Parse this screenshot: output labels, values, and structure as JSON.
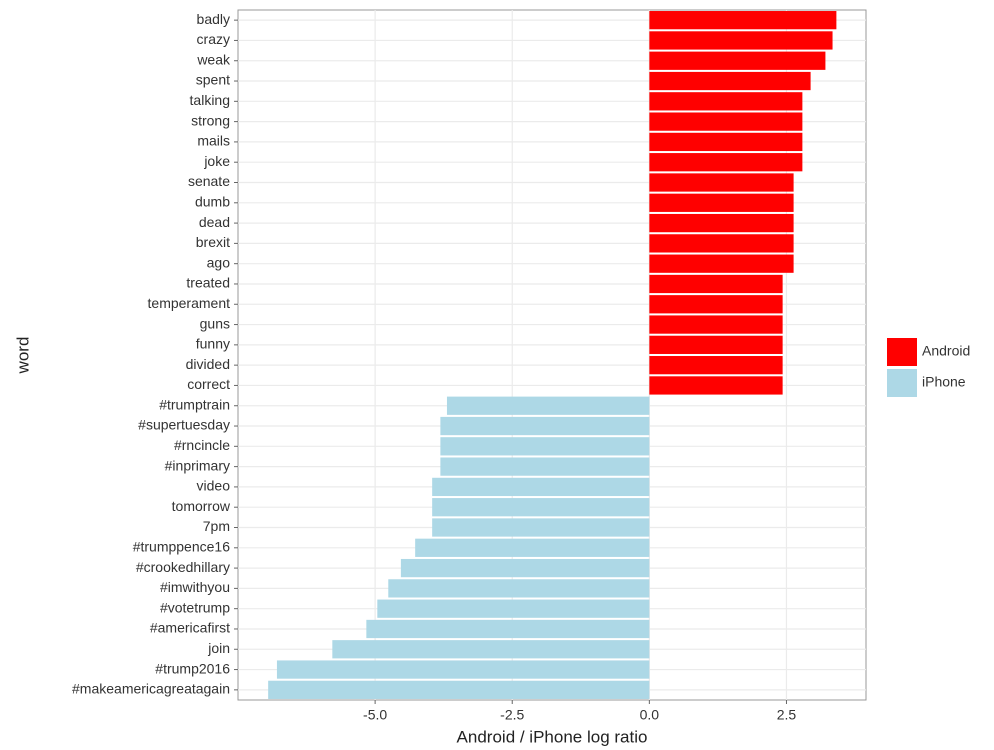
{
  "chart_data": {
    "type": "hbar",
    "x_label": "Android / iPhone log ratio",
    "y_label": "word",
    "xlim": [
      -7.5,
      3.95
    ],
    "xticks": [
      {
        "value": -5,
        "label": "-5.0"
      },
      -2.5,
      {
        "value": 0,
        "label": "0.0"
      },
      2.5
    ],
    "grid": true,
    "legend": "right",
    "series": [
      {
        "name": "Android",
        "color": "#ff0000",
        "categories": [
          "badly",
          "crazy",
          "weak",
          "spent",
          "talking",
          "strong",
          "mails",
          "joke",
          "senate",
          "dumb",
          "dead",
          "brexit",
          "ago",
          "treated",
          "temperament",
          "guns",
          "funny",
          "divided",
          "correct"
        ],
        "values": [
          3.41,
          3.34,
          3.21,
          2.94,
          2.79,
          2.79,
          2.79,
          2.79,
          2.63,
          2.63,
          2.63,
          2.63,
          2.63,
          2.43,
          2.43,
          2.43,
          2.43,
          2.43,
          2.43
        ]
      },
      {
        "name": "iPhone",
        "color": "#add8e6",
        "categories": [
          "#trumptrain",
          "#supertuesday",
          "#rncincle",
          "#inprimary",
          "video",
          "tomorrow",
          "7pm",
          "#trumppence16",
          "#crookedhillary",
          "#imwithyou",
          "#votetrump",
          "#americafirst",
          "join",
          "#trump2016",
          "#makeamericagreatagain"
        ],
        "values": [
          -3.69,
          -3.81,
          -3.81,
          -3.81,
          -3.96,
          -3.96,
          -3.96,
          -4.27,
          -4.53,
          -4.76,
          -4.96,
          -5.16,
          -5.78,
          -6.79,
          -6.95
        ]
      }
    ]
  }
}
